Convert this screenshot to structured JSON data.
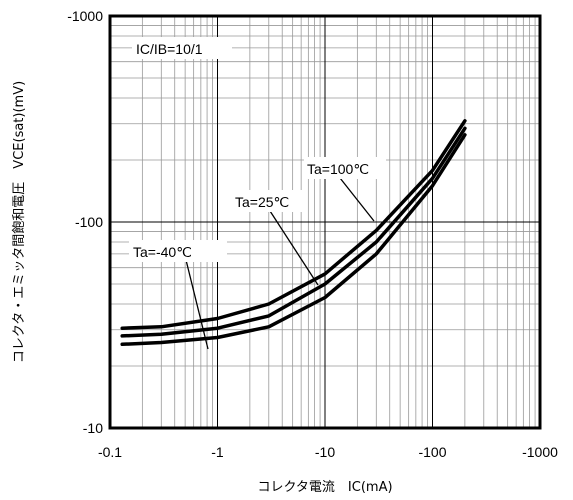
{
  "chart_data": {
    "type": "line",
    "x_scale": "log",
    "y_scale": "log",
    "xlim": [
      -0.1,
      -1000
    ],
    "ylim": [
      -10,
      -1000
    ],
    "x_ticks": [
      "-0.1",
      "-1",
      "-10",
      "-100",
      "-1000"
    ],
    "y_ticks": [
      "-1000",
      "-100",
      "-10"
    ],
    "xlabel": "コレクタ電流　IC(mA)",
    "ylabel": "コレクタ・エミッタ間飽和電圧　VCE(sat)(mV)",
    "condition": "IC/IB=10/1",
    "grid": true,
    "series": [
      {
        "name": "Ta=100℃",
        "x": [
          -0.13,
          -0.3,
          -1,
          -3,
          -10,
          -30,
          -100,
          -200
        ],
        "y": [
          -30.5,
          -31,
          -34,
          -40,
          -56,
          -91,
          -178,
          -310
        ]
      },
      {
        "name": "Ta=25℃",
        "x": [
          -0.13,
          -0.3,
          -1,
          -3,
          -10,
          -30,
          -100,
          -200
        ],
        "y": [
          -28,
          -28.5,
          -30.5,
          -35,
          -50,
          -80,
          -163,
          -285
        ]
      },
      {
        "name": "Ta=-40℃",
        "x": [
          -0.13,
          -0.3,
          -1,
          -3,
          -10,
          -30,
          -100,
          -200
        ],
        "y": [
          -25.5,
          -26,
          -27.5,
          -31,
          -43,
          -70,
          -150,
          -265
        ]
      }
    ]
  }
}
